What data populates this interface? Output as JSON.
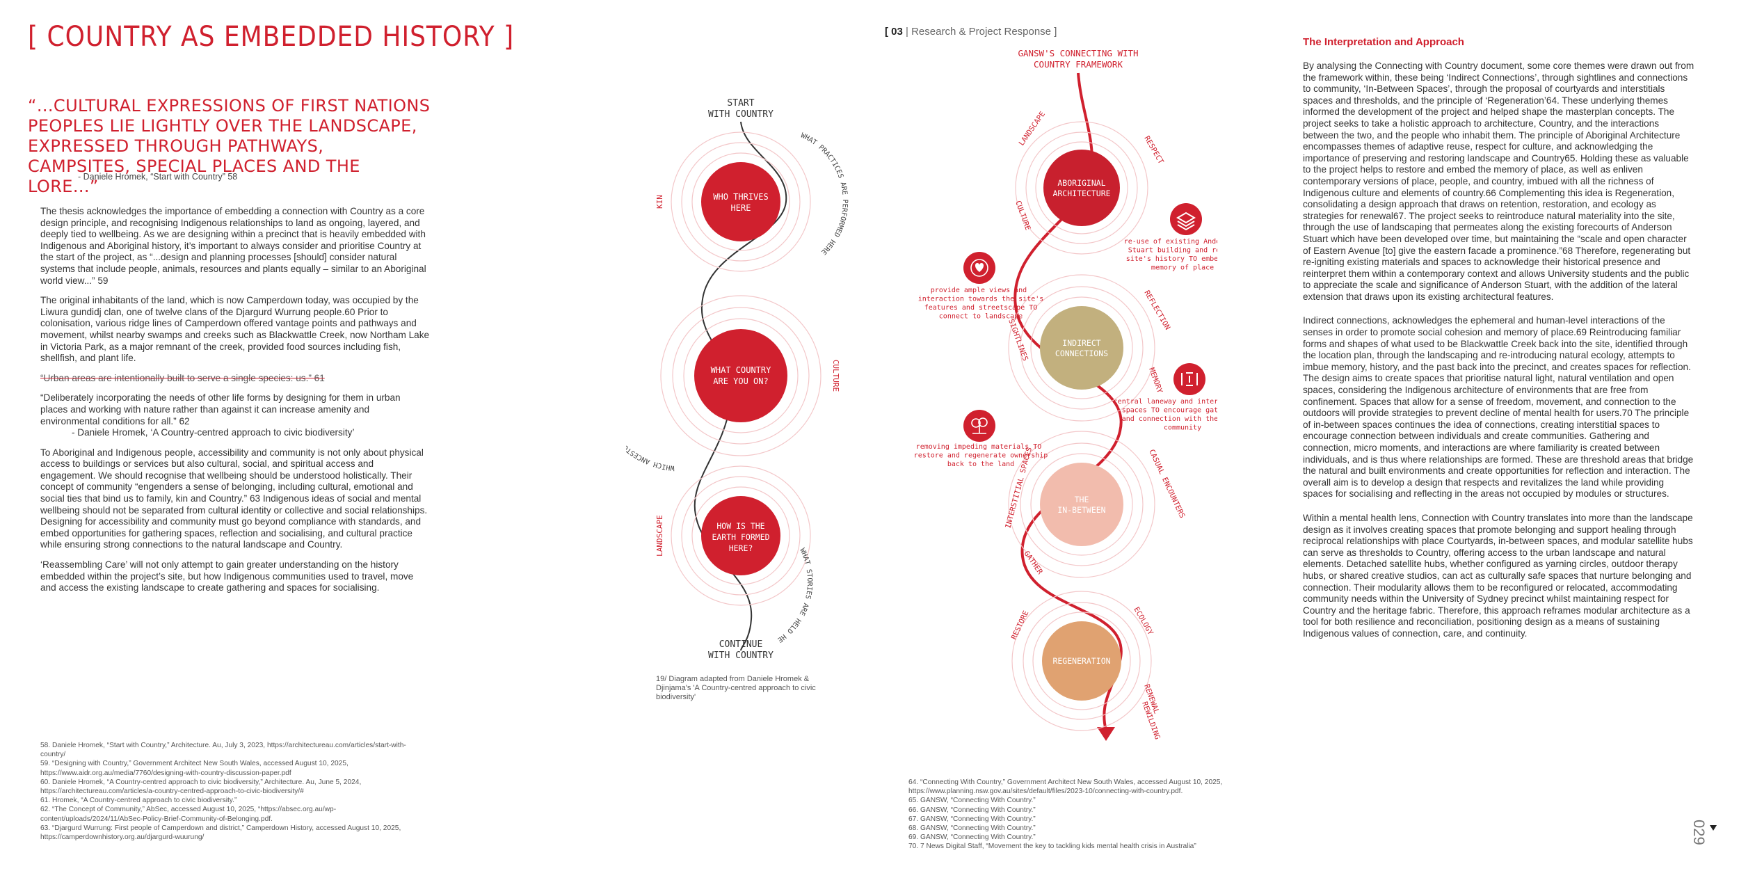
{
  "left_page": {
    "title": "[ COUNTRY AS EMBEDDED HISTORY ]",
    "quote": "“...CULTURAL EXPRESSIONS OF FIRST NATIONS PEOPLES LIE LIGHTLY OVER THE LANDSCAPE, EXPRESSED THROUGH PATHWAYS, CAMPSITES, SPECIAL PLACES AND THE LORE...”",
    "quote_attribution": "- Daniele Hromek, “Start with Country” 58",
    "paragraphs": [
      "The thesis acknowledges the importance of embedding a connection with Country as a core design principle, and recognising Indigenous relationships to land as ongoing, layered, and deeply tied to wellbeing. As we are designing within a precinct that is heavily embedded with Indigenous and Aboriginal history, it’s important to always consider and prioritise Country at the start of the project, as “...design and planning processes [should] consider natural systems that include people, animals, resources and plants equally – similar to an Aboriginal world view...” 59",
      "The original inhabitants of the land, which is now Camperdown today, was occupied by the Liwura gundidj clan, one of twelve clans of the Djargurd Wurrung people.60 Prior to colonisation, various ridge lines of Camperdown offered vantage points and pathways and movement, whilst nearby swamps and creeks such as Blackwattle Creek, now Northam Lake in Victoria Park, as a major remnant of the creek, provided food sources including fish, shellfish, and plant life."
    ],
    "struck_quote": "“Urban areas are intentionally built to serve a single species: us.” 61",
    "quote2": "“Deliberately incorporating the needs of other life forms by designing for them in urban places and working with nature rather than against it can increase amenity and environmental conditions for all.” 62",
    "quote2_attribution": "- Daniele Hromek, ‘A Country-centred approach to civic biodiversity’",
    "paragraphs2": [
      "To Aboriginal and Indigenous people, accessibility and community is not only about physical access to buildings or services but also cultural, social, and spiritual access and engagement. We should recognise that wellbeing should be understood holistically. Their concept of community “engenders a sense of belonging, including cultural, emotional and social ties that bind us to family, kin and Country.” 63 Indigenous ideas of social and mental wellbeing should not be separated from cultural identity or collective and social relationships. Designing for accessibility and community must go beyond compliance with standards, and embed opportunities for gathering spaces, reflection and socialising, and cultural practice while ensuring strong connections to the natural landscape and Country.",
      "‘Reassembling Care’ will not only attempt to gain greater understanding on the history embedded within the project’s site, but how Indigenous communities used to travel, move and access the existing landscape to create gathering and spaces for socialising."
    ],
    "footnotes": [
      "58. Daniele Hromek, “Start with Country,” Architecture. Au, July 3, 2023, https://architectureau.com/articles/start-with-country/",
      "59. “Designing with Country,” Government Architect New South Wales, accessed August 10, 2025, https://www.aidr.org.au/media/7760/designing-with-country-discussion-paper.pdf",
      "60. Daniele Hromek, “A Country-centred approach to civic biodiversity,” Architecture. Au, June 5, 2024, https://architectureau.com/articles/a-country-centred-approach-to-civic-biodiversity/#",
      "61. Hromek, “A Country-centred approach to civic biodiversity.”",
      "62. “The Concept of Community,” AbSec, accessed August 10, 2025, “https://absec.org.au/wp-content/uploads/2024/11/AbSec-Policy-Brief-Community-of-Belonging.pdf.",
      "63. “Djargurd Wurrung: First people of Camperdown and district,” Camperdown History, accessed August 10, 2025, https://camperdownhistory.org.au/djargurd-wuurung/"
    ]
  },
  "diagram1": {
    "start": [
      "START",
      "WITH COUNTRY"
    ],
    "end": [
      "CONTINUE",
      "WITH COUNTRY"
    ],
    "circles": [
      {
        "lines": [
          "WHO THRIVES",
          "HERE"
        ],
        "left_label": "KIN",
        "right_label": "WHAT PRACTICES ARE PERFORMED HERE"
      },
      {
        "lines": [
          "WHAT COUNTRY",
          "ARE YOU ON?"
        ],
        "left_label": "WHICH ANCESTORS WALK THROUGH HERE",
        "right_label": "CULTURE"
      },
      {
        "lines": [
          "HOW IS THE",
          "EARTH FORMED",
          "HERE?"
        ],
        "left_label": "LANDSCAPE",
        "right_label": "WHAT STORIES ARE HELD HERE"
      }
    ],
    "caption": "19/ Diagram adapted from Daniele Hromek & Djinjama's 'A Country-centred approach to civic biodiversity'",
    "colors": {
      "red": "#d0202e"
    }
  },
  "header": {
    "number": "03",
    "text": "| Research & Project Response ]",
    "open": "["
  },
  "diagram2": {
    "title": [
      "GANSW'S CONNECTING WITH",
      "COUNTRY FRAMEWORK"
    ],
    "circles": [
      {
        "lines": [
          "ABORIGINAL",
          "ARCHITECTURE"
        ],
        "color": "#c8202e",
        "labels": [
          "LANDSCAPE",
          "RESPECT",
          "CULTURE"
        ]
      },
      {
        "lines": [
          "INDIRECT",
          "CONNECTIONS"
        ],
        "color": "#c2b07e",
        "labels": [
          "REFLECTION",
          "SIGHTLINES",
          "MEMORY"
        ]
      },
      {
        "lines": [
          "THE",
          "IN-BETWEEN"
        ],
        "color": "#f2bcad",
        "labels": [
          "INTERSTITIAL SPACES",
          "CASUAL ENCOUNTERS",
          "GATHER"
        ]
      },
      {
        "lines": [
          "REGENERATION"
        ],
        "color": "#e0a271",
        "labels": [
          "RESTORE",
          "ECOLOGY",
          "RENEWAL",
          "REWILDING"
        ]
      }
    ],
    "notes": [
      "re-use of existing Anderson Stuart building and retain site's history TO embed the memory of place",
      "provide ample views and interaction towards the site's features and streetscape TO connect to landscape",
      "central laneway and interstitial spaces TO encourage gathering and connection with the wider community",
      "removing impeding materials TO restore and regenerate ownership back to the land"
    ]
  },
  "mid_footnotes": [
    "64. “Connecting With Country,” Government Architect New South Wales, accessed August 10, 2025, https://www.planning.nsw.gov.au/sites/default/files/2023-10/connecting-with-country.pdf.",
    "65. GANSW, “Connecting With Country.”",
    "66. GANSW, “Connecting With Country.”",
    "67. GANSW, “Connecting With Country.”",
    "68. GANSW, “Connecting With Country.”",
    "69. GANSW, “Connecting With Country.”",
    "70. 7 News Digital Staff, “Movement the key to tackling kids mental health crisis in Australia”"
  ],
  "right_page": {
    "heading": "The Interpretation and Approach",
    "paragraphs": [
      "By analysing the Connecting with Country document, some core themes were drawn out from the framework within, these being ‘Indirect Connections’, through sightlines and connections to community, ‘In-Between Spaces’, through the proposal of courtyards and interstitials spaces and thresholds, and the principle of ‘Regeneration’64. These underlying themes informed the development of the project and helped shape the masterplan concepts. The project seeks to take a holistic approach to architecture, Country, and the interactions between the two, and the people who inhabit them. The principle of Aboriginal Architecture encompasses themes of adaptive reuse, respect for culture, and acknowledging the importance of preserving and restoring landscape and Country65. Holding these as valuable to the project helps to restore and embed the memory of place, as well as enliven contemporary versions of place, people, and country, imbued with all the richness of Indigenous culture and elements of country.66 Complementing this idea is Regeneration, consolidating a design approach that draws on retention, restoration, and ecology as strategies for renewal67. The project seeks to reintroduce natural materiality into the site, through the use of landscaping that permeates along the existing forecourts of Anderson Stuart which have been developed over time, but maintaining the “scale and open character of Eastern Avenue [to] give the eastern facade a prominence.”68 Therefore, regenerating but re-igniting existing materials and spaces to acknowledge their historical presence and reinterpret them within a contemporary context and allows University students and the public to appreciate the scale and significance of Anderson Stuart, with the addition of the lateral extension that draws upon its existing architectural features.",
      "Indirect connections, acknowledges the ephemeral and human-level interactions of the senses in order to promote social cohesion and memory of place.69 Reintroducing familiar forms and shapes of what used to be Blackwattle Creek back into the site, identified through the location plan, through the landscaping and re-introducing natural ecology, attempts to imbue memory, history, and the past back into the precinct, and creates spaces for reflection. The design aims to create spaces that prioritise natural light, natural ventilation and open spaces, considering the Indigenous architecture of environments that are free from confinement. Spaces that allow for a sense of freedom, movement, and connection to the outdoors will provide strategies to prevent decline of mental health for users.70 The principle of in-between spaces continues the idea of connections, creating interstitial spaces to encourage connection between individuals and create communities. Gathering and connection, micro moments, and interactions are where familiarity is created between individuals, and is thus where relationships are formed. These are threshold areas that bridge the natural and built environments and create opportunities for reflection and interaction. The overall aim is to develop a design that respects and revitalizes the land while providing spaces for socialising and reflecting in the areas not occupied by modules or structures.",
      "Within a mental health lens, Connection with Country translates into more than the landscape design as it involves creating spaces that promote belonging and support healing through reciprocal relationships with place Courtyards, in-between spaces, and modular satellite hubs can serve as thresholds to Country, offering access to the urban landscape and natural elements. Detached satellite hubs, whether configured as yarning circles, outdoor therapy hubs, or shared creative studios, can act as culturally safe spaces that nurture belonging and connection. Their modularity allows them to be reconfigured or relocated, accommodating community needs within the University of Sydney precinct whilst maintaining respect for Country and the heritage fabric. Therefore, this approach reframes modular architecture as a tool for both resilience and reconciliation, positioning design as a means of sustaining Indigenous values of connection, care, and continuity."
    ],
    "page_number": "029"
  }
}
